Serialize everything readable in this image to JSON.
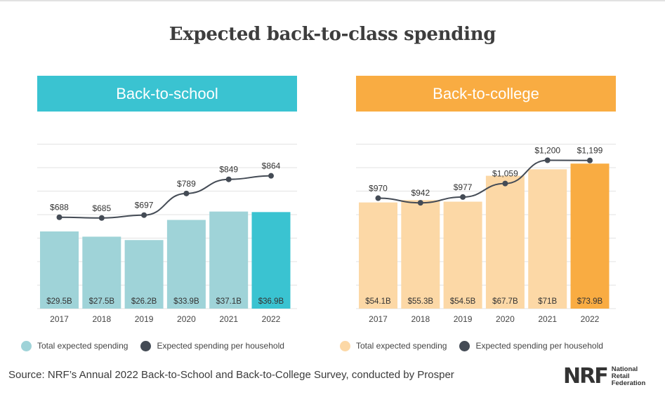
{
  "title": "Expected back-to-class spending",
  "source": "Source: NRF’s Annual 2022 Back-to-School and Back-to-College Survey, conducted by Prosper",
  "logo": {
    "mark": "NRF",
    "line1": "National",
    "line2": "Retail",
    "line3": "Federation"
  },
  "chart_data": [
    {
      "type": "bar",
      "header": "Back-to-school",
      "categories": [
        "2017",
        "2018",
        "2019",
        "2020",
        "2021",
        "2022"
      ],
      "series": [
        {
          "name": "Total expected spending",
          "type": "bar",
          "values": [
            29.5,
            27.5,
            26.2,
            33.9,
            37.1,
            36.9
          ],
          "labels": [
            "$29.5B",
            "$27.5B",
            "$26.2B",
            "$33.9B",
            "$37.1B",
            "$36.9B"
          ],
          "color": "#9fd3d8",
          "highlight_color": "#3ac3d1"
        },
        {
          "name": "Expected spending per household",
          "type": "line",
          "values": [
            688,
            685,
            697,
            789,
            849,
            864
          ],
          "labels": [
            "$688",
            "$685",
            "$697",
            "$789",
            "$849",
            "$864"
          ],
          "color": "#444b55"
        }
      ],
      "bar_ylim": [
        0,
        63
      ],
      "line_ylim": [
        300,
        1000
      ],
      "grid": true
    },
    {
      "type": "bar",
      "header": "Back-to-college",
      "categories": [
        "2017",
        "2018",
        "2019",
        "2020",
        "2021",
        "2022"
      ],
      "series": [
        {
          "name": "Total expected spending",
          "type": "bar",
          "values": [
            54.1,
            55.3,
            54.5,
            67.7,
            71,
            73.9
          ],
          "labels": [
            "$54.1B",
            "$55.3B",
            "$54.5B",
            "$67.7B",
            "$71B",
            "$73.9B"
          ],
          "color": "#fcd8a6",
          "highlight_color": "#f9ac42"
        },
        {
          "name": "Expected spending per household",
          "type": "line",
          "values": [
            970,
            942,
            977,
            1059,
            1200,
            1199
          ],
          "labels": [
            "$970",
            "$942",
            "$977",
            "$1,059",
            "$1,200",
            "$1,199"
          ],
          "color": "#444b55"
        }
      ],
      "bar_ylim": [
        0,
        84
      ],
      "line_ylim": [
        300,
        1300
      ],
      "grid": true
    }
  ]
}
